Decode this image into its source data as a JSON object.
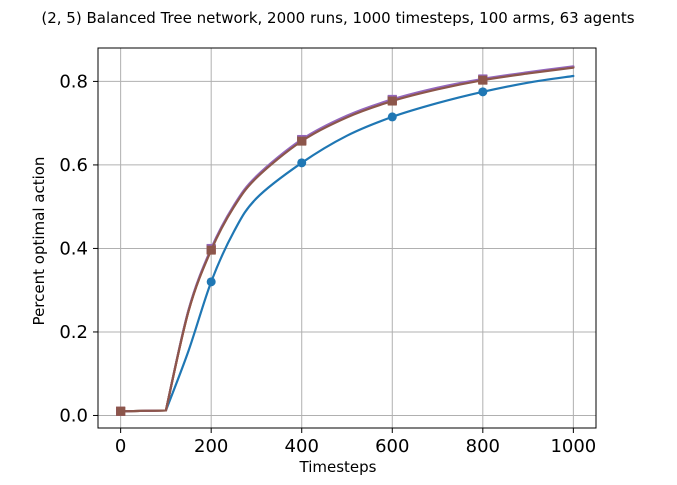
{
  "chart_data": {
    "type": "line",
    "title": "(2, 5) Balanced Tree network, 2000 runs, 1000 timesteps, 100 arms, 63 agents",
    "xlabel": "Timesteps",
    "ylabel": "Percent optimal action",
    "xlim": [
      -50,
      1050
    ],
    "ylim": [
      -0.03,
      0.88
    ],
    "xticks": [
      0,
      200,
      400,
      600,
      800,
      1000
    ],
    "yticks": [
      0.0,
      0.2,
      0.4,
      0.6,
      0.8
    ],
    "xtick_labels": [
      "0",
      "200",
      "400",
      "600",
      "800",
      "1000"
    ],
    "ytick_labels": [
      "0.0",
      "0.2",
      "0.4",
      "0.6",
      "0.8"
    ],
    "grid": true,
    "legend": "none",
    "x": [
      0,
      100,
      150,
      200,
      250,
      300,
      400,
      500,
      600,
      700,
      800,
      900,
      1000
    ],
    "series": [
      {
        "color": "#1f77b4",
        "marker": "circle",
        "values": [
          0.01,
          0.012,
          0.155,
          0.32,
          0.44,
          0.52,
          0.605,
          0.67,
          0.715,
          0.748,
          0.775,
          0.797,
          0.813
        ]
      },
      {
        "color": "#ff7f0e",
        "marker": "square",
        "values": [
          0.01,
          0.012,
          0.25,
          0.397,
          0.5,
          0.57,
          0.658,
          0.715,
          0.754,
          0.782,
          0.804,
          0.82,
          0.834
        ]
      },
      {
        "color": "#2ca02c",
        "marker": "square",
        "values": [
          0.01,
          0.012,
          0.252,
          0.399,
          0.502,
          0.572,
          0.66,
          0.717,
          0.756,
          0.784,
          0.805,
          0.821,
          0.835
        ]
      },
      {
        "color": "#d62728",
        "marker": "square",
        "values": [
          0.01,
          0.012,
          0.251,
          0.398,
          0.501,
          0.571,
          0.659,
          0.716,
          0.755,
          0.783,
          0.804,
          0.82,
          0.834
        ]
      },
      {
        "color": "#9467bd",
        "marker": "square",
        "values": [
          0.01,
          0.012,
          0.253,
          0.4,
          0.503,
          0.573,
          0.661,
          0.718,
          0.757,
          0.785,
          0.806,
          0.822,
          0.836
        ]
      },
      {
        "color": "#8c564b",
        "marker": "square",
        "values": [
          0.01,
          0.012,
          0.25,
          0.396,
          0.499,
          0.569,
          0.657,
          0.714,
          0.753,
          0.781,
          0.803,
          0.819,
          0.833
        ]
      }
    ],
    "marker_x": [
      0,
      200,
      400,
      600,
      800
    ]
  }
}
